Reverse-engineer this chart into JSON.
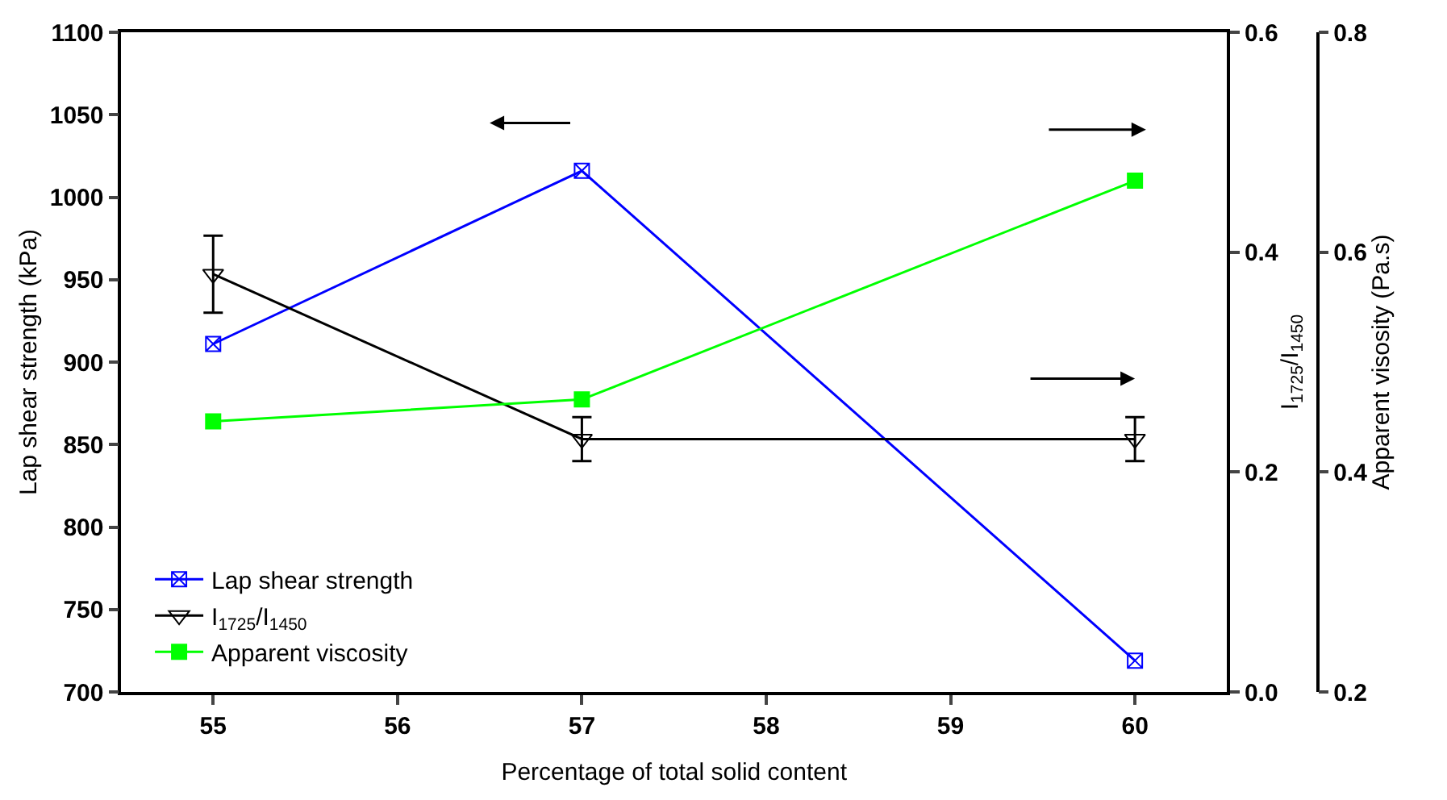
{
  "chart_data": {
    "type": "line",
    "xlabel": "Percentage of total solid content",
    "ylabel": "Lap shear strength (kPa)",
    "y2label": "I$_{1725}$/I$_{1450}$",
    "y3label": "Apparent visosity (Pa.s)",
    "x": [
      55,
      57,
      60
    ],
    "xlim": [
      54.5,
      60.5
    ],
    "xticks": [
      55,
      56,
      57,
      58,
      59,
      60
    ],
    "ylim": [
      700,
      1100
    ],
    "yticks": [
      700,
      750,
      800,
      850,
      900,
      950,
      1000,
      1050,
      1100
    ],
    "y2lim": [
      0,
      0.6
    ],
    "y2ticks": [
      {
        "value": 0,
        "label": "0.0"
      },
      0.2,
      0.4,
      0.6
    ],
    "y3lim": [
      0.2,
      0.8
    ],
    "y3ticks": [
      0.2,
      0.4,
      0.6,
      0.8
    ],
    "legend": "bottom left",
    "line_style": "solid",
    "series": [
      {
        "name": "Lap shear strength",
        "color": "#0000ff",
        "marker": "cross",
        "values": [
          911,
          1016,
          719
        ]
      },
      {
        "name": "I$_{1725}$/I$_{1450}$",
        "color": "#000000",
        "marker": "triangle",
        "axis": "y2",
        "values": [
          0.38,
          0.23,
          0.23
        ],
        "errors": [
          0.035,
          0.02,
          0.02
        ]
      },
      {
        "name": "Apparent viscosity",
        "color": "#00ff00",
        "marker": "square",
        "axis": "y3",
        "values": [
          0.446,
          0.466,
          0.665
        ]
      }
    ]
  }
}
